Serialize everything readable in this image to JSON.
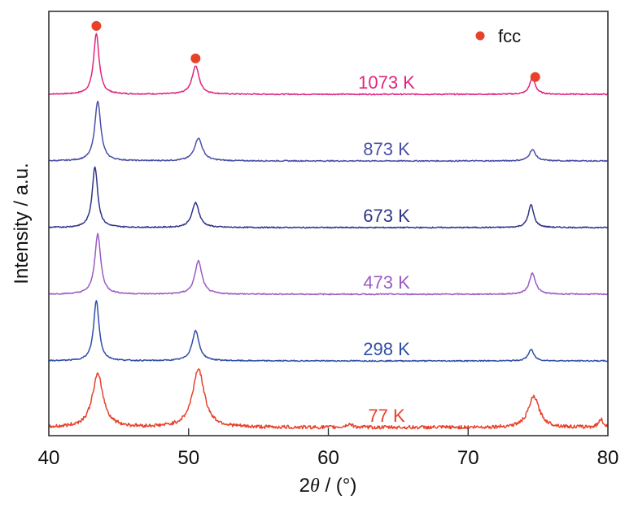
{
  "chart_data": {
    "type": "line",
    "title": "",
    "xlabel_prefix": "2",
    "xlabel_symbol": "θ",
    "xlabel_suffix": " / (°)",
    "xlabel": "2θ / (°)",
    "ylabel": "Intensity / a.u.",
    "xlim": [
      40,
      80
    ],
    "x_ticks": [
      40,
      50,
      60,
      70,
      80
    ],
    "x_tick_labels": [
      "40",
      "50",
      "60",
      "70",
      "80"
    ],
    "grid": false,
    "legend": {
      "position": "top-right",
      "entries": [
        {
          "marker": "circle",
          "label": "fcc",
          "color": "#e8412a"
        }
      ]
    },
    "fcc_marker_color": "#e8412a",
    "fcc_markers": [
      {
        "x": 43.4,
        "on_series": "1073 K"
      },
      {
        "x": 50.5,
        "on_series": "1073 K"
      },
      {
        "x": 74.8,
        "on_series": "1073 K"
      }
    ],
    "series": [
      {
        "name": "1073 K",
        "color": "#e0247f",
        "offset_rank": 6,
        "peaks": [
          {
            "x": 43.4,
            "intensity": 75,
            "width": 0.35
          },
          {
            "x": 50.5,
            "intensity": 35,
            "width": 0.45
          },
          {
            "x": 74.6,
            "intensity": 21,
            "width": 0.35
          }
        ]
      },
      {
        "name": "873 K",
        "color": "#4a4fa8",
        "offset_rank": 5,
        "peaks": [
          {
            "x": 43.5,
            "intensity": 74,
            "width": 0.38
          },
          {
            "x": 50.7,
            "intensity": 28,
            "width": 0.5
          },
          {
            "x": 74.6,
            "intensity": 14,
            "width": 0.4
          }
        ]
      },
      {
        "name": "673 K",
        "color": "#2e3588",
        "offset_rank": 4,
        "peaks": [
          {
            "x": 43.3,
            "intensity": 75,
            "width": 0.35
          },
          {
            "x": 50.5,
            "intensity": 31,
            "width": 0.45
          },
          {
            "x": 74.5,
            "intensity": 28,
            "width": 0.35
          }
        ]
      },
      {
        "name": "473 K",
        "color": "#9b5bc4",
        "offset_rank": 3,
        "peaks": [
          {
            "x": 43.5,
            "intensity": 74,
            "width": 0.38
          },
          {
            "x": 50.7,
            "intensity": 41,
            "width": 0.45
          },
          {
            "x": 74.6,
            "intensity": 26,
            "width": 0.4
          }
        ]
      },
      {
        "name": "298 K",
        "color": "#2f4ea6",
        "offset_rank": 2,
        "peaks": [
          {
            "x": 43.4,
            "intensity": 74,
            "width": 0.35
          },
          {
            "x": 50.5,
            "intensity": 37,
            "width": 0.45
          },
          {
            "x": 74.5,
            "intensity": 14,
            "width": 0.35
          }
        ]
      },
      {
        "name": "77 K",
        "color": "#e8412a",
        "offset_rank": 1,
        "peaks": [
          {
            "x": 43.5,
            "intensity": 65,
            "width": 0.7
          },
          {
            "x": 50.7,
            "intensity": 72,
            "width": 0.75
          },
          {
            "x": 61.5,
            "intensity": 4,
            "width": 0.4
          },
          {
            "x": 74.7,
            "intensity": 38,
            "width": 0.7
          },
          {
            "x": 79.5,
            "intensity": 10,
            "width": 0.3
          }
        ]
      }
    ]
  }
}
